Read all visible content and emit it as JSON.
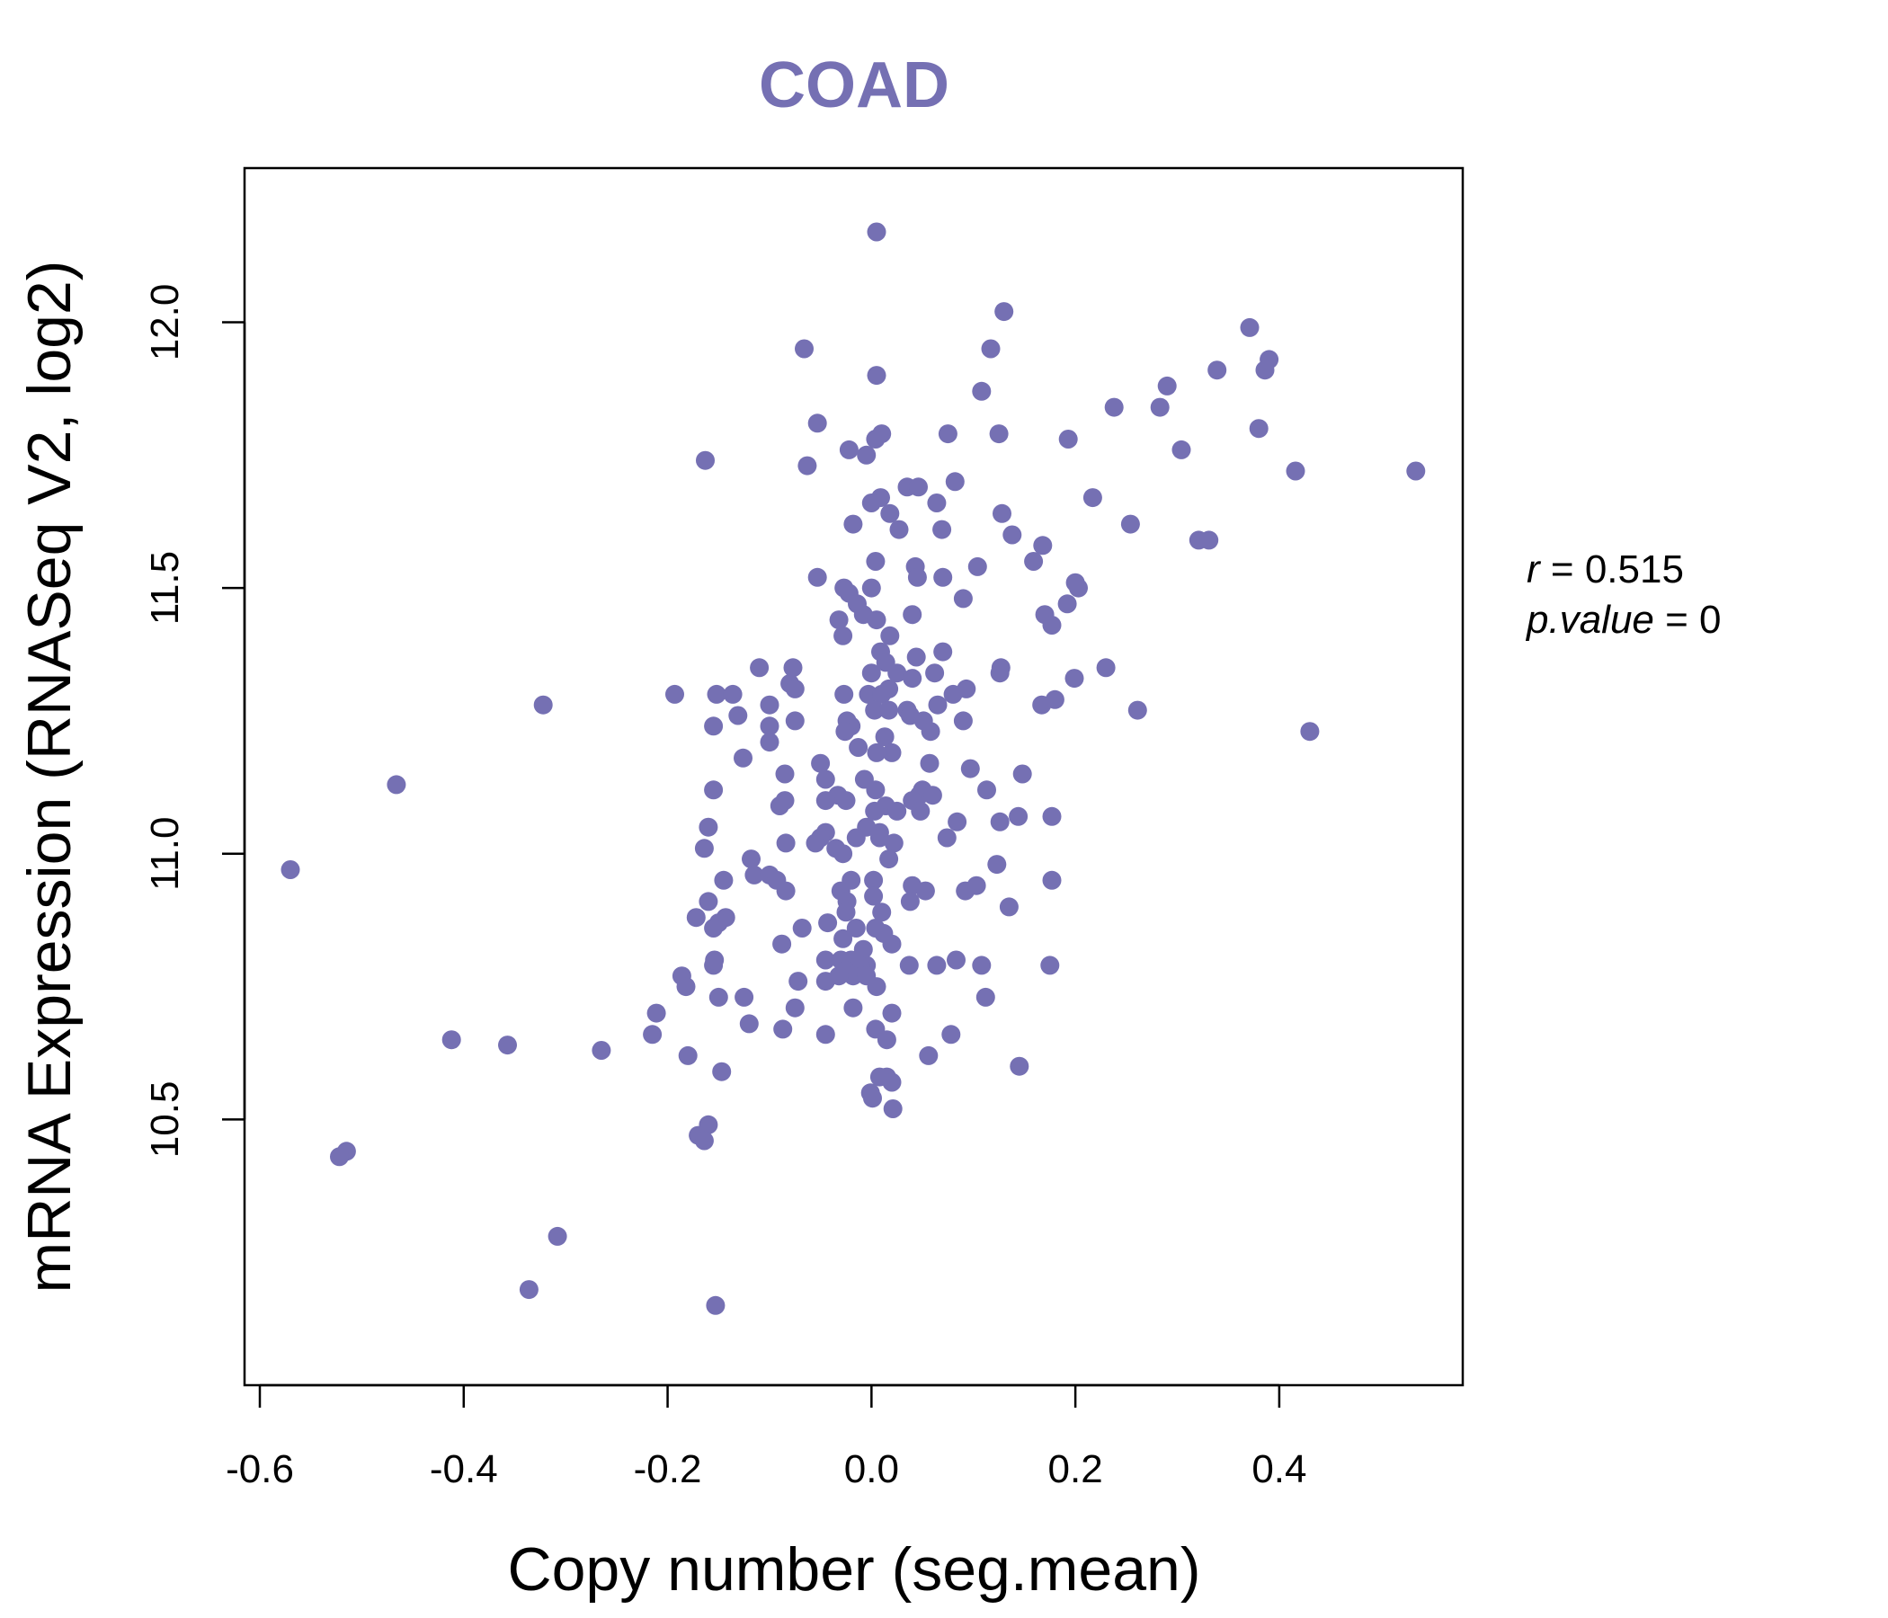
{
  "chart_data": {
    "type": "scatter",
    "title": "COAD",
    "xlabel": "Copy number (seg.mean)",
    "ylabel": "mRNA Expression (RNASeq V2, log2)",
    "xlim": [
      -0.615,
      0.58
    ],
    "ylim": [
      10.0,
      12.29
    ],
    "x_ticks": [
      -0.6,
      -0.4,
      -0.2,
      0.0,
      0.2,
      0.4
    ],
    "x_tick_labels": [
      "-0.6",
      "-0.4",
      "-0.2",
      "0.0",
      "0.2",
      "0.4"
    ],
    "y_ticks": [
      10.5,
      11.0,
      11.5,
      12.0
    ],
    "y_tick_labels": [
      "10.5",
      "11.0",
      "11.5",
      "12.0"
    ],
    "point_color": "#7570b3",
    "title_color": "#7570b3",
    "stats": {
      "r_label": "r",
      "r_value": "0.515",
      "p_label": "p.value",
      "p_value": "0"
    },
    "points": [
      [
        0.005,
        12.17
      ],
      [
        0.13,
        12.02
      ],
      [
        -0.066,
        11.95
      ],
      [
        0.117,
        11.95
      ],
      [
        0.371,
        11.99
      ],
      [
        0.39,
        11.93
      ],
      [
        0.386,
        11.91
      ],
      [
        0.339,
        11.91
      ],
      [
        0.29,
        11.88
      ],
      [
        0.005,
        11.9
      ],
      [
        0.108,
        11.87
      ],
      [
        0.238,
        11.84
      ],
      [
        0.283,
        11.84
      ],
      [
        -0.053,
        11.81
      ],
      [
        0.01,
        11.79
      ],
      [
        0.075,
        11.79
      ],
      [
        0.125,
        11.79
      ],
      [
        0.193,
        11.78
      ],
      [
        0.38,
        11.8
      ],
      [
        -0.022,
        11.76
      ],
      [
        0.004,
        11.78
      ],
      [
        0.304,
        11.76
      ],
      [
        -0.163,
        11.74
      ],
      [
        -0.063,
        11.73
      ],
      [
        -0.005,
        11.75
      ],
      [
        0.416,
        11.72
      ],
      [
        0.534,
        11.72
      ],
      [
        0.082,
        11.7
      ],
      [
        0.035,
        11.69
      ],
      [
        0.046,
        11.69
      ],
      [
        0.217,
        11.67
      ],
      [
        0.009,
        11.67
      ],
      [
        0.0,
        11.66
      ],
      [
        0.064,
        11.66
      ],
      [
        0.018,
        11.64
      ],
      [
        0.128,
        11.64
      ],
      [
        0.254,
        11.62
      ],
      [
        -0.018,
        11.62
      ],
      [
        0.027,
        11.61
      ],
      [
        0.069,
        11.61
      ],
      [
        0.138,
        11.6
      ],
      [
        0.321,
        11.59
      ],
      [
        0.331,
        11.59
      ],
      [
        0.168,
        11.58
      ],
      [
        0.159,
        11.55
      ],
      [
        0.004,
        11.55
      ],
      [
        0.043,
        11.54
      ],
      [
        0.104,
        11.54
      ],
      [
        -0.053,
        11.52
      ],
      [
        0.045,
        11.52
      ],
      [
        0.07,
        11.52
      ],
      [
        0.2,
        11.51
      ],
      [
        -0.027,
        11.5
      ],
      [
        -0.022,
        11.49
      ],
      [
        0.0,
        11.5
      ],
      [
        0.203,
        11.5
      ],
      [
        0.09,
        11.48
      ],
      [
        -0.014,
        11.47
      ],
      [
        0.192,
        11.47
      ],
      [
        -0.008,
        11.45
      ],
      [
        0.04,
        11.45
      ],
      [
        0.17,
        11.45
      ],
      [
        -0.032,
        11.44
      ],
      [
        0.177,
        11.43
      ],
      [
        0.005,
        11.44
      ],
      [
        -0.028,
        11.41
      ],
      [
        0.018,
        11.41
      ],
      [
        0.009,
        11.38
      ],
      [
        0.014,
        11.36
      ],
      [
        0.044,
        11.37
      ],
      [
        0.07,
        11.38
      ],
      [
        -0.11,
        11.35
      ],
      [
        -0.077,
        11.35
      ],
      [
        0.127,
        11.35
      ],
      [
        0.23,
        11.35
      ],
      [
        0.0,
        11.34
      ],
      [
        0.025,
        11.34
      ],
      [
        0.062,
        11.34
      ],
      [
        0.126,
        11.34
      ],
      [
        0.199,
        11.33
      ],
      [
        -0.08,
        11.32
      ],
      [
        0.04,
        11.33
      ],
      [
        0.017,
        11.31
      ],
      [
        0.093,
        11.31
      ],
      [
        -0.075,
        11.31
      ],
      [
        -0.003,
        11.3
      ],
      [
        0.01,
        11.3
      ],
      [
        -0.193,
        11.3
      ],
      [
        -0.152,
        11.3
      ],
      [
        -0.136,
        11.3
      ],
      [
        -0.027,
        11.3
      ],
      [
        0.08,
        11.3
      ],
      [
        0.18,
        11.29
      ],
      [
        -0.322,
        11.28
      ],
      [
        -0.1,
        11.28
      ],
      [
        0.065,
        11.28
      ],
      [
        0.167,
        11.28
      ],
      [
        0.261,
        11.27
      ],
      [
        0.003,
        11.27
      ],
      [
        0.017,
        11.27
      ],
      [
        0.035,
        11.27
      ],
      [
        -0.131,
        11.26
      ],
      [
        0.038,
        11.26
      ],
      [
        0.051,
        11.25
      ],
      [
        0.09,
        11.25
      ],
      [
        -0.075,
        11.25
      ],
      [
        -0.024,
        11.25
      ],
      [
        -0.02,
        11.24
      ],
      [
        -0.155,
        11.24
      ],
      [
        -0.1,
        11.24
      ],
      [
        0.058,
        11.23
      ],
      [
        -0.026,
        11.23
      ],
      [
        0.013,
        11.22
      ],
      [
        0.43,
        11.23
      ],
      [
        -0.1,
        11.21
      ],
      [
        -0.013,
        11.2
      ],
      [
        0.02,
        11.19
      ],
      [
        0.005,
        11.19
      ],
      [
        -0.126,
        11.18
      ],
      [
        0.057,
        11.17
      ],
      [
        -0.05,
        11.17
      ],
      [
        0.097,
        11.16
      ],
      [
        0.148,
        11.15
      ],
      [
        -0.085,
        11.15
      ],
      [
        -0.045,
        11.14
      ],
      [
        -0.007,
        11.14
      ],
      [
        -0.466,
        11.13
      ],
      [
        -0.155,
        11.12
      ],
      [
        0.004,
        11.12
      ],
      [
        0.113,
        11.12
      ],
      [
        0.05,
        11.12
      ],
      [
        -0.033,
        11.11
      ],
      [
        0.047,
        11.11
      ],
      [
        0.06,
        11.11
      ],
      [
        -0.085,
        11.1
      ],
      [
        -0.025,
        11.1
      ],
      [
        -0.045,
        11.1
      ],
      [
        0.04,
        11.1
      ],
      [
        -0.09,
        11.09
      ],
      [
        0.014,
        11.09
      ],
      [
        0.025,
        11.08
      ],
      [
        0.048,
        11.08
      ],
      [
        0.003,
        11.08
      ],
      [
        0.144,
        11.07
      ],
      [
        0.177,
        11.07
      ],
      [
        0.084,
        11.06
      ],
      [
        0.126,
        11.06
      ],
      [
        -0.005,
        11.05
      ],
      [
        -0.16,
        11.05
      ],
      [
        0.008,
        11.04
      ],
      [
        -0.045,
        11.04
      ],
      [
        -0.05,
        11.03
      ],
      [
        -0.015,
        11.03
      ],
      [
        0.074,
        11.03
      ],
      [
        0.008,
        11.03
      ],
      [
        -0.055,
        11.02
      ],
      [
        0.022,
        11.02
      ],
      [
        -0.084,
        11.02
      ],
      [
        -0.035,
        11.01
      ],
      [
        -0.028,
        11.0
      ],
      [
        -0.164,
        11.01
      ],
      [
        0.017,
        10.99
      ],
      [
        -0.118,
        10.99
      ],
      [
        0.123,
        10.98
      ],
      [
        -0.57,
        10.97
      ],
      [
        -0.115,
        10.96
      ],
      [
        -0.1,
        10.96
      ],
      [
        -0.093,
        10.95
      ],
      [
        0.002,
        10.95
      ],
      [
        0.177,
        10.95
      ],
      [
        -0.02,
        10.95
      ],
      [
        -0.145,
        10.95
      ],
      [
        0.04,
        10.94
      ],
      [
        0.103,
        10.94
      ],
      [
        -0.03,
        10.93
      ],
      [
        0.053,
        10.93
      ],
      [
        0.092,
        10.93
      ],
      [
        -0.084,
        10.93
      ],
      [
        0.002,
        10.92
      ],
      [
        -0.16,
        10.91
      ],
      [
        0.038,
        10.91
      ],
      [
        -0.024,
        10.91
      ],
      [
        0.135,
        10.9
      ],
      [
        -0.025,
        10.89
      ],
      [
        0.01,
        10.89
      ],
      [
        -0.172,
        10.88
      ],
      [
        -0.143,
        10.88
      ],
      [
        -0.15,
        10.87
      ],
      [
        -0.043,
        10.87
      ],
      [
        -0.068,
        10.86
      ],
      [
        -0.015,
        10.86
      ],
      [
        -0.155,
        10.86
      ],
      [
        0.004,
        10.86
      ],
      [
        0.012,
        10.85
      ],
      [
        -0.028,
        10.84
      ],
      [
        -0.088,
        10.83
      ],
      [
        0.02,
        10.83
      ],
      [
        -0.008,
        10.82
      ],
      [
        -0.045,
        10.8
      ],
      [
        -0.03,
        10.8
      ],
      [
        -0.02,
        10.8
      ],
      [
        -0.155,
        10.79
      ],
      [
        0.037,
        10.79
      ],
      [
        0.064,
        10.79
      ],
      [
        0.083,
        10.8
      ],
      [
        0.108,
        10.79
      ],
      [
        0.175,
        10.79
      ],
      [
        -0.154,
        10.8
      ],
      [
        -0.005,
        10.79
      ],
      [
        -0.011,
        10.79
      ],
      [
        -0.025,
        10.78
      ],
      [
        -0.018,
        10.77
      ],
      [
        -0.186,
        10.77
      ],
      [
        -0.072,
        10.76
      ],
      [
        -0.032,
        10.77
      ],
      [
        -0.045,
        10.76
      ],
      [
        -0.005,
        10.77
      ],
      [
        -0.182,
        10.75
      ],
      [
        0.005,
        10.75
      ],
      [
        -0.15,
        10.73
      ],
      [
        -0.125,
        10.73
      ],
      [
        0.112,
        10.73
      ],
      [
        -0.018,
        10.71
      ],
      [
        -0.075,
        10.71
      ],
      [
        0.02,
        10.7
      ],
      [
        -0.211,
        10.7
      ],
      [
        -0.12,
        10.68
      ],
      [
        -0.087,
        10.67
      ],
      [
        0.004,
        10.67
      ],
      [
        0.078,
        10.66
      ],
      [
        -0.215,
        10.66
      ],
      [
        -0.412,
        10.65
      ],
      [
        -0.045,
        10.66
      ],
      [
        -0.357,
        10.64
      ],
      [
        0.015,
        10.65
      ],
      [
        -0.265,
        10.63
      ],
      [
        0.056,
        10.62
      ],
      [
        -0.18,
        10.62
      ],
      [
        -0.147,
        10.59
      ],
      [
        0.145,
        10.6
      ],
      [
        0.015,
        10.58
      ],
      [
        0.008,
        10.58
      ],
      [
        0.02,
        10.57
      ],
      [
        -0.001,
        10.55
      ],
      [
        0.001,
        10.54
      ],
      [
        0.021,
        10.52
      ],
      [
        -0.16,
        10.49
      ],
      [
        -0.17,
        10.47
      ],
      [
        -0.164,
        10.46
      ],
      [
        -0.515,
        10.44
      ],
      [
        -0.522,
        10.43
      ],
      [
        -0.308,
        10.28
      ],
      [
        -0.336,
        10.18
      ],
      [
        -0.153,
        10.15
      ]
    ]
  }
}
